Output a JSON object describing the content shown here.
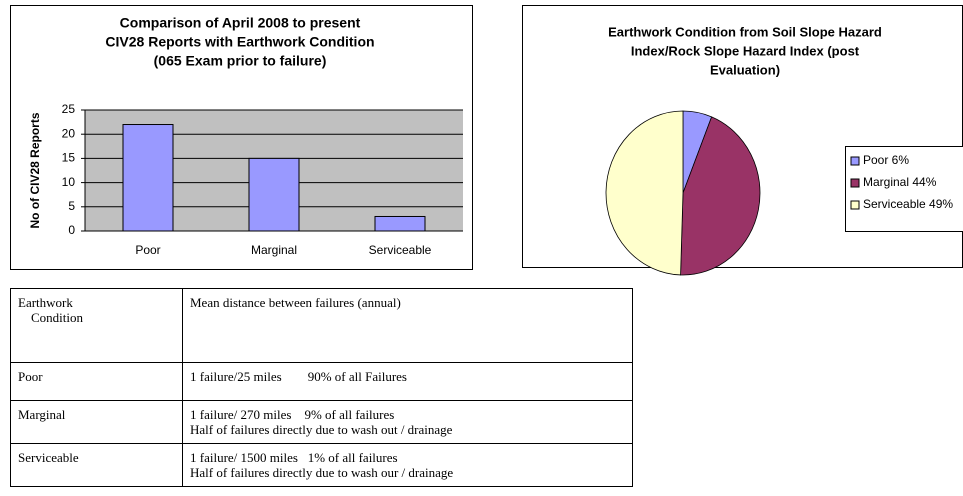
{
  "chart_data": [
    {
      "type": "bar",
      "title": [
        "Comparison of April 2008 to present",
        "CIV28 Reports with Earthwork Condition",
        "(065 Exam prior to failure)"
      ],
      "y_label": "No of CIV28 Reports",
      "categories": [
        "Poor",
        "Marginal",
        "Serviceable"
      ],
      "values": [
        22,
        15,
        3
      ],
      "color": "#9999ff",
      "ylim": [
        0,
        25
      ],
      "yticks": [
        0,
        5,
        10,
        15,
        20,
        25
      ],
      "grid": true
    },
    {
      "type": "pie",
      "title": [
        "Earthwork Condition from Soil Slope Hazard",
        "Index/Rock Slope Hazard Index (post",
        "Evaluation)"
      ],
      "categories": [
        "Poor 6%",
        "Marginal 44%",
        "Serviceable 49%"
      ],
      "values": [
        6,
        44,
        49
      ],
      "colors": [
        "#9999ff",
        "#993366",
        "#ffffcc"
      ],
      "legend": "right"
    }
  ],
  "table": {
    "header": [
      [
        "Earthwork",
        "    Condition"
      ],
      [
        "Mean distance between failures (annual)"
      ]
    ],
    "rows": [
      [
        [
          "Poor"
        ],
        [
          "1 failure/25 miles        90% of all Failures"
        ]
      ],
      [
        [
          "Marginal"
        ],
        [
          "1 failure/ 270 miles    9% of all failures",
          "Half of failures directly due to wash out / drainage"
        ]
      ],
      [
        [
          "Serviceable"
        ],
        [
          "1 failure/ 1500 miles   1% of all failures",
          "Half of failures directly due to wash our / drainage"
        ]
      ]
    ]
  }
}
